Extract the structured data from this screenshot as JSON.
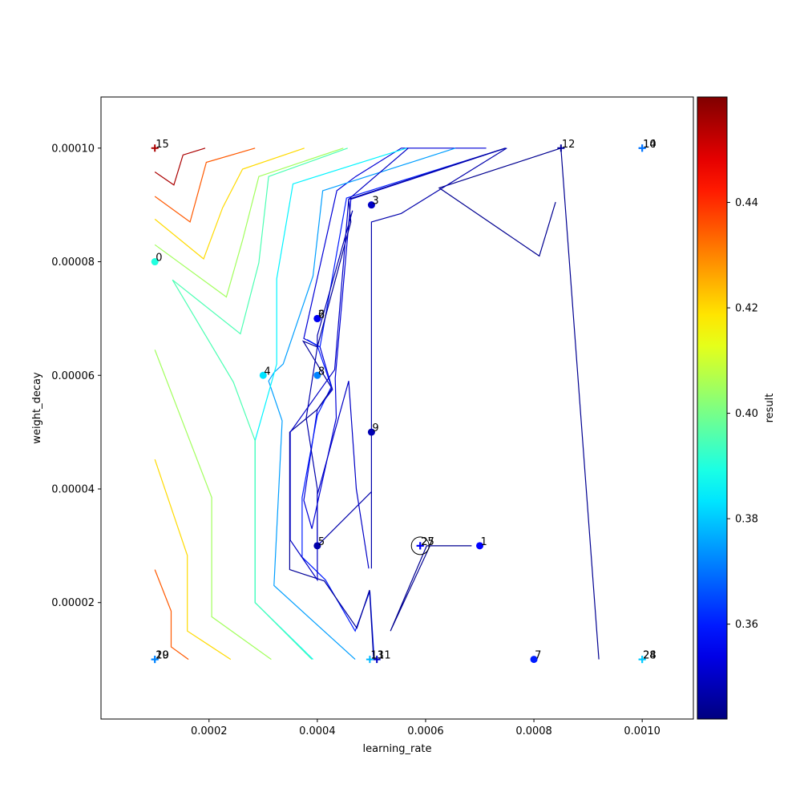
{
  "chart_data": {
    "type": "scatter",
    "title": "",
    "xlabel": "learning_rate",
    "ylabel": "weight_decay",
    "colorbar_label": "result",
    "xlim": [
      5e-07,
      0.0010945
    ],
    "ylim": [
      -5e-07,
      0.000109
    ],
    "xticks": [
      {
        "v": 0.0002,
        "label": "0.0002"
      },
      {
        "v": 0.0004,
        "label": "0.0004"
      },
      {
        "v": 0.0006,
        "label": "0.0006"
      },
      {
        "v": 0.0008,
        "label": "0.0008"
      },
      {
        "v": 0.001,
        "label": "0.0010"
      }
    ],
    "yticks": [
      {
        "v": 2e-05,
        "label": "0.00002"
      },
      {
        "v": 4e-05,
        "label": "0.00004"
      },
      {
        "v": 6e-05,
        "label": "0.00006"
      },
      {
        "v": 8e-05,
        "label": "0.00008"
      },
      {
        "v": 0.0001,
        "label": "0.00010"
      }
    ],
    "colorbar": {
      "colormap": "jet",
      "range": [
        0.342,
        0.46
      ],
      "ticks": [
        {
          "v": 0.36,
          "label": "0.36"
        },
        {
          "v": 0.38,
          "label": "0.38"
        },
        {
          "v": 0.4,
          "label": "0.40"
        },
        {
          "v": 0.42,
          "label": "0.42"
        },
        {
          "v": 0.44,
          "label": "0.44"
        }
      ]
    },
    "grid": false,
    "points": [
      {
        "label": "0",
        "x": 0.0001,
        "y": 8e-05,
        "result": 0.39,
        "marker": "circle"
      },
      {
        "label": "1",
        "x": 0.0007,
        "y": 3e-05,
        "result": 0.357,
        "marker": "circle"
      },
      {
        "label": "2",
        "x": 0.0004,
        "y": 7e-05,
        "result": 0.355,
        "marker": "circle"
      },
      {
        "label": "3",
        "x": 0.0005,
        "y": 9e-05,
        "result": 0.35,
        "marker": "circle"
      },
      {
        "label": "4",
        "x": 0.0003,
        "y": 6e-05,
        "result": 0.383,
        "marker": "circle"
      },
      {
        "label": "5",
        "x": 0.0004,
        "y": 3e-05,
        "result": 0.347,
        "marker": "circle"
      },
      {
        "label": "6",
        "x": 0.0004,
        "y": 7e-05,
        "result": 0.355,
        "marker": "circle"
      },
      {
        "label": "7",
        "x": 0.0008,
        "y": 1e-05,
        "result": 0.36,
        "marker": "circle"
      },
      {
        "label": "8",
        "x": 0.0004,
        "y": 6e-05,
        "result": 0.372,
        "marker": "circle"
      },
      {
        "label": "9",
        "x": 0.0005,
        "y": 5e-05,
        "result": 0.348,
        "marker": "circle"
      },
      {
        "label": "10",
        "x": 0.001,
        "y": 0.0001,
        "result": 0.37,
        "marker": "plus"
      },
      {
        "label": "11",
        "x": 0.00051,
        "y": 1e-05,
        "result": 0.35,
        "marker": "plus"
      },
      {
        "label": "12",
        "x": 0.00085,
        "y": 0.0001,
        "result": 0.345,
        "marker": "plus"
      },
      {
        "label": "13",
        "x": 0.000497,
        "y": 1e-05,
        "result": 0.378,
        "marker": "plus"
      },
      {
        "label": "14",
        "x": 0.001,
        "y": 0.0001,
        "result": 0.37,
        "marker": "plus"
      },
      {
        "label": "15",
        "x": 0.0001,
        "y": 0.0001,
        "result": 0.455,
        "marker": "plus"
      },
      {
        "label": "19",
        "x": 0.0001,
        "y": 1e-05,
        "result": 0.372,
        "marker": "plus"
      },
      {
        "label": "20",
        "x": 0.0001,
        "y": 1e-05,
        "result": 0.372,
        "marker": "plus"
      },
      {
        "label": "24",
        "x": 0.001,
        "y": 1e-05,
        "result": 0.38,
        "marker": "plus"
      },
      {
        "label": "25",
        "x": 0.00059,
        "y": 3e-05,
        "result": 0.356,
        "marker": "plus",
        "highlight": true
      },
      {
        "label": "27",
        "x": 0.00059,
        "y": 3e-05,
        "result": 0.356,
        "marker": "plus"
      },
      {
        "label": "28",
        "x": 0.001,
        "y": 1e-05,
        "result": 0.38,
        "marker": "plus"
      }
    ],
    "contours": [
      {
        "level": 0.344,
        "points": [
          [
            0.00092,
            1e-05
          ],
          [
            0.00085,
            0.0001
          ],
          [
            0.000625,
            9.3e-05
          ],
          [
            0.00081,
            8.1e-05
          ],
          [
            0.00084,
            9.05e-05
          ]
        ]
      },
      {
        "level": 0.344,
        "points": [
          [
            0.000608,
            3e-05
          ],
          [
            0.000535,
            1.5e-05
          ],
          [
            0.000602,
            3e-05
          ],
          [
            0.000685,
            3e-05
          ],
          [
            0.000608,
            3e-05
          ]
        ]
      },
      {
        "level": 0.347,
        "points": [
          [
            0.00075,
            0.0001
          ],
          [
            0.000555,
            8.85e-05
          ],
          [
            0.0005,
            8.7e-05
          ],
          [
            0.0005,
            2.6e-05
          ],
          [
            0.0005,
            3.95e-05
          ],
          [
            0.0004,
            3e-05
          ],
          [
            0.0004,
            4e-05
          ],
          [
            0.0003795,
            5.25e-05
          ],
          [
            0.0004,
            6.5e-05
          ],
          [
            0.0004,
            6.7e-05
          ],
          [
            0.000465,
            8.9e-05
          ]
        ]
      },
      {
        "level": 0.35,
        "points": [
          [
            0.000568,
            0.0001
          ],
          [
            0.000458,
            9.1e-05
          ],
          [
            0.000432,
            6.1e-05
          ],
          [
            0.00035,
            5e-05
          ],
          [
            0.00035,
            3.1e-05
          ],
          [
            0.0004,
            2.4e-05
          ],
          [
            0.0004,
            3.9e-05
          ],
          [
            0.000458,
            5.9e-05
          ],
          [
            0.000472,
            4e-05
          ],
          [
            0.000495,
            2.6e-05
          ]
        ]
      }
    ],
    "contour_lines": [
      {
        "level": 0.352,
        "points": [
          [
            0.000748,
            0.0001
          ],
          [
            0.000462,
            9.1e-05
          ],
          [
            0.000433,
            5.95e-05
          ],
          [
            0.000435,
            5.25e-05
          ],
          [
            0.00039,
            3.3e-05
          ],
          [
            0.000375,
            3.8e-05
          ],
          [
            0.0004,
            5.4e-05
          ],
          [
            0.000428,
            5.75e-05
          ],
          [
            0.000405,
            6.5e-05
          ],
          [
            0.000375,
            6.65e-05
          ],
          [
            0.000436,
            9.25e-05
          ],
          [
            0.000471,
            9.5e-05
          ],
          [
            0.000555,
            0.0001
          ],
          [
            0.0006,
            0.0001
          ],
          [
            0.000712,
            0.0001
          ]
        ]
      },
      {
        "level": 0.36,
        "points": [
          [
            0.000748,
            0.0001
          ],
          [
            0.000454,
            9.12e-05
          ],
          [
            0.000405,
            6.5e-05
          ],
          [
            0.000381,
            6.63e-05
          ],
          [
            0.0004,
            6.52e-05
          ],
          [
            0.000426,
            5.8e-05
          ],
          [
            0.0004,
            5.3e-05
          ],
          [
            0.000372,
            3.85e-05
          ],
          [
            0.000372,
            2.8e-05
          ],
          [
            0.000415,
            2.4e-05
          ],
          [
            0.00047,
            1.5e-05
          ],
          [
            0.000497,
            2.2e-05
          ],
          [
            0.000505,
            1e-05
          ]
        ]
      },
      {
        "level": 0.345,
        "points": [
          [
            0.000747,
            0.0001
          ],
          [
            0.000458,
            9.1e-05
          ],
          [
            0.000462,
            8.7e-05
          ],
          [
            0.0004,
            6.5e-05
          ],
          [
            0.000374,
            6.6e-05
          ],
          [
            0.000427,
            5.77e-05
          ],
          [
            0.0004,
            5.4e-05
          ],
          [
            0.000349,
            5e-05
          ],
          [
            0.000349,
            2.58e-05
          ],
          [
            0.000413,
            2.38e-05
          ],
          [
            0.000473,
            1.55e-05
          ],
          [
            0.0004965,
            2.22e-05
          ],
          [
            0.000504,
            1e-05
          ]
        ]
      },
      {
        "level": 0.375,
        "points": [
          [
            0.000655,
            0.0001
          ],
          [
            0.00041,
            9.25e-05
          ],
          [
            0.000392,
            7.75e-05
          ],
          [
            0.000337,
            6.2e-05
          ],
          [
            0.00032,
            6.05e-05
          ],
          [
            0.00031,
            5.9e-05
          ],
          [
            0.000335,
            5.2e-05
          ],
          [
            0.00032,
            2.3e-05
          ],
          [
            0.00047,
            1e-05
          ]
        ]
      },
      {
        "level": 0.385,
        "points": [
          [
            0.000565,
            0.0001
          ],
          [
            0.000355,
            9.37e-05
          ],
          [
            0.000325,
            7.7e-05
          ],
          [
            0.000325,
            6.2e-05
          ],
          [
            0.000285,
            4.85e-05
          ],
          [
            0.000285,
            2e-05
          ],
          [
            0.000392,
            1e-05
          ]
        ]
      },
      {
        "level": 0.395,
        "points": [
          [
            0.0001325,
            7.68e-05
          ],
          [
            0.000258,
            6.73e-05
          ],
          [
            0.000292,
            7.98e-05
          ],
          [
            0.00031,
            9.5e-05
          ],
          [
            0.000456,
            0.0001
          ]
        ]
      },
      {
        "level": 0.395,
        "points": [
          [
            0.0001325,
            7.68e-05
          ],
          [
            0.000245,
            5.88e-05
          ],
          [
            0.000285,
            4.85e-05
          ],
          [
            0.000285,
            2e-05
          ],
          [
            0.00039,
            1e-05
          ]
        ]
      },
      {
        "level": 0.405,
        "points": [
          [
            0.0001,
            8.3e-05
          ],
          [
            0.000232,
            7.38e-05
          ],
          [
            0.000262,
            8.38e-05
          ],
          [
            0.000292,
            9.5e-05
          ],
          [
            0.000448,
            0.0001
          ]
        ]
      },
      {
        "level": 0.405,
        "points": [
          [
            0.0001,
            6.45e-05
          ],
          [
            0.000205,
            3.85e-05
          ],
          [
            0.000205,
            1.75e-05
          ],
          [
            0.000315,
            1e-05
          ]
        ]
      },
      {
        "level": 0.42,
        "points": [
          [
            0.0001,
            8.75e-05
          ],
          [
            0.00019,
            8.05e-05
          ],
          [
            0.000225,
            8.95e-05
          ],
          [
            0.000262,
            9.63e-05
          ],
          [
            0.000376,
            0.0001
          ]
        ]
      },
      {
        "level": 0.42,
        "points": [
          [
            0.0001,
            4.52e-05
          ],
          [
            0.00016,
            2.83e-05
          ],
          [
            0.00016,
            1.5e-05
          ],
          [
            0.00024,
            1e-05
          ]
        ]
      },
      {
        "level": 0.435,
        "points": [
          [
            0.0001,
            9.15e-05
          ],
          [
            0.000165,
            8.7e-05
          ],
          [
            0.000195,
            9.75e-05
          ],
          [
            0.000285,
            0.0001
          ]
        ]
      },
      {
        "level": 0.435,
        "points": [
          [
            0.0001,
            2.58e-05
          ],
          [
            0.00013,
            1.85e-05
          ],
          [
            0.00013,
            1.22e-05
          ],
          [
            0.000162,
            1e-05
          ]
        ]
      },
      {
        "level": 0.455,
        "points": [
          [
            0.0001,
            9.58e-05
          ],
          [
            0.000135,
            9.35e-05
          ],
          [
            0.000152,
            9.88e-05
          ],
          [
            0.000193,
            0.0001
          ]
        ]
      }
    ]
  }
}
